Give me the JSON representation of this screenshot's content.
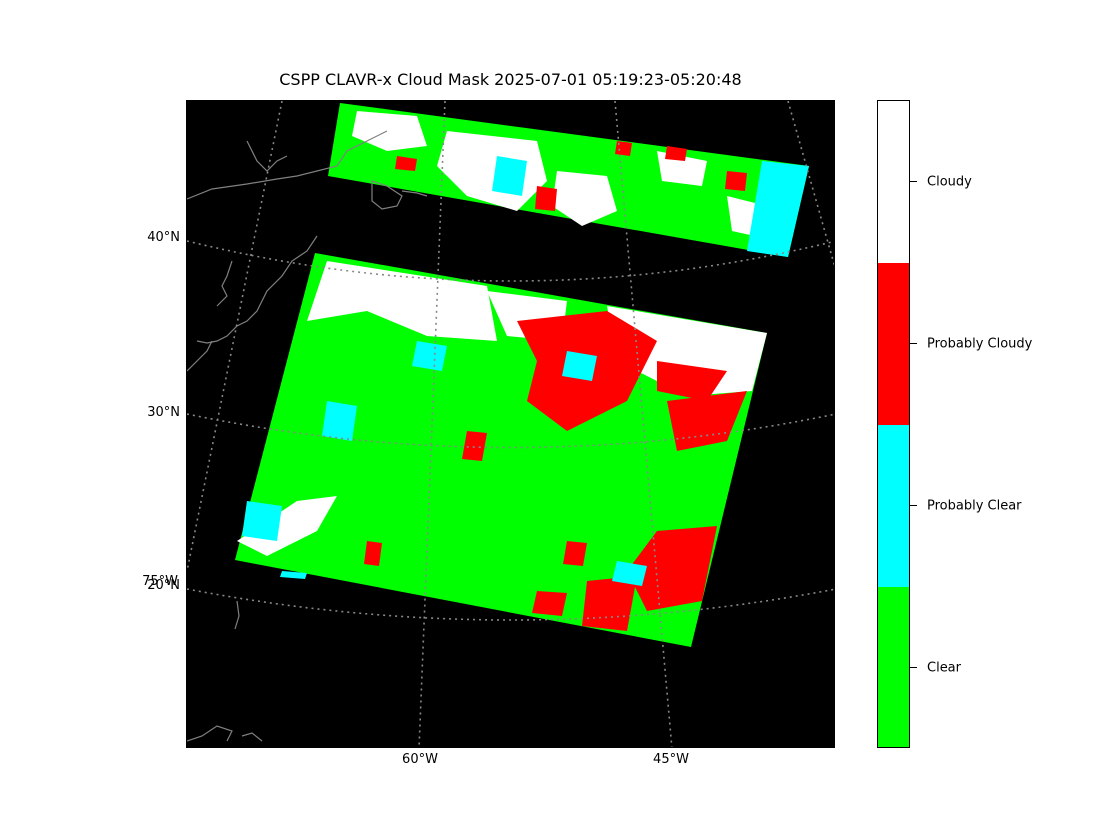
{
  "title": "CSPP CLAVR-x Cloud Mask 2025-07-01 05:19:23-05:20:48",
  "latitude_labels": [
    "40°N",
    "30°N",
    "20°N"
  ],
  "longitude_labels": [
    "60°W",
    "45°W"
  ],
  "edge_longitude_label": "75°W",
  "legend": {
    "categories": [
      {
        "label": "Cloudy",
        "color": "#ffffff"
      },
      {
        "label": "Probably Cloudy",
        "color": "#ff0000"
      },
      {
        "label": "Probably Clear",
        "color": "#00ffff"
      },
      {
        "label": "Clear",
        "color": "#00ff00"
      }
    ]
  },
  "colors": {
    "background": "#000000",
    "coastline": "#808080",
    "gridline": "#808080"
  }
}
